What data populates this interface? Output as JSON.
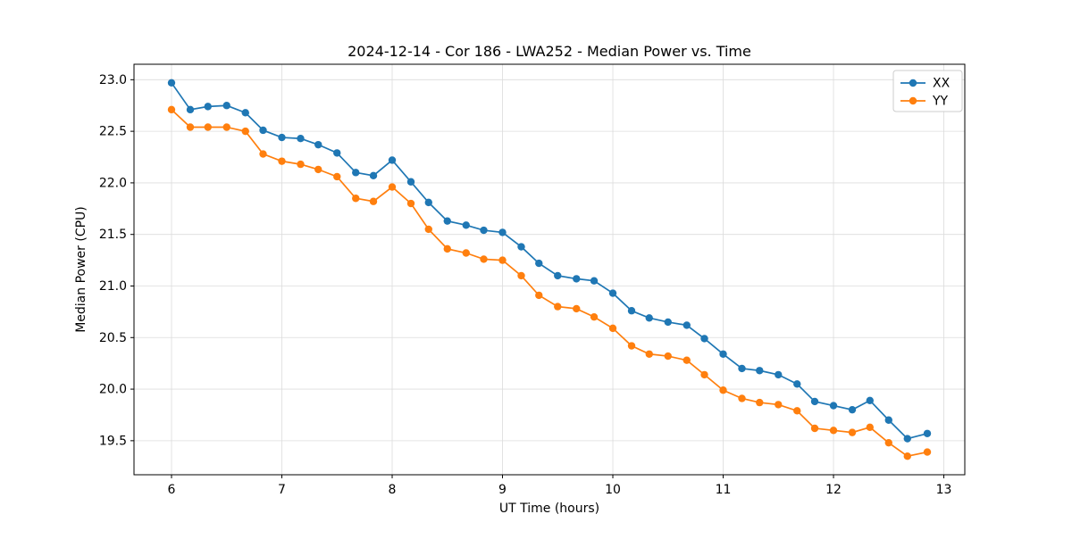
{
  "chart_data": {
    "type": "line",
    "title": "2024-12-14 - Cor 186 - LWA252 - Median Power vs. Time",
    "xlabel": "UT Time (hours)",
    "ylabel": "Median Power (CPU)",
    "xlim": [
      5.66,
      13.19
    ],
    "ylim": [
      19.17,
      23.15
    ],
    "xticks": [
      6,
      7,
      8,
      9,
      10,
      11,
      12,
      13
    ],
    "yticks": [
      19.5,
      20.0,
      20.5,
      21.0,
      21.5,
      22.0,
      22.5,
      23.0
    ],
    "grid": true,
    "grid_color": "#dcdcdc",
    "legend_position": "upper right",
    "marker": "o",
    "x": [
      6.0,
      6.17,
      6.33,
      6.5,
      6.67,
      6.83,
      7.0,
      7.17,
      7.33,
      7.5,
      7.67,
      7.83,
      8.0,
      8.17,
      8.33,
      8.5,
      8.67,
      8.83,
      9.0,
      9.17,
      9.33,
      9.5,
      9.67,
      9.83,
      10.0,
      10.17,
      10.33,
      10.5,
      10.67,
      10.83,
      11.0,
      11.17,
      11.33,
      11.5,
      11.67,
      11.83,
      12.0,
      12.17,
      12.33,
      12.5,
      12.67,
      12.85
    ],
    "series": [
      {
        "name": "XX",
        "color": "#1f77b4",
        "values": [
          22.97,
          22.71,
          22.74,
          22.75,
          22.68,
          22.51,
          22.44,
          22.43,
          22.37,
          22.29,
          22.1,
          22.07,
          22.22,
          22.01,
          21.81,
          21.63,
          21.59,
          21.54,
          21.52,
          21.38,
          21.22,
          21.1,
          21.07,
          21.05,
          20.93,
          20.76,
          20.69,
          20.65,
          20.62,
          20.49,
          20.34,
          20.2,
          20.18,
          20.14,
          20.05,
          19.88,
          19.84,
          19.8,
          19.89,
          19.7,
          19.52,
          19.57
        ]
      },
      {
        "name": "YY",
        "color": "#ff7f0e",
        "values": [
          22.71,
          22.54,
          22.54,
          22.54,
          22.5,
          22.28,
          22.21,
          22.18,
          22.13,
          22.06,
          21.85,
          21.82,
          21.96,
          21.8,
          21.55,
          21.36,
          21.32,
          21.26,
          21.25,
          21.1,
          20.91,
          20.8,
          20.78,
          20.7,
          20.59,
          20.42,
          20.34,
          20.32,
          20.28,
          20.14,
          19.99,
          19.91,
          19.87,
          19.85,
          19.79,
          19.62,
          19.6,
          19.58,
          19.63,
          19.48,
          19.35,
          19.39
        ]
      }
    ]
  }
}
